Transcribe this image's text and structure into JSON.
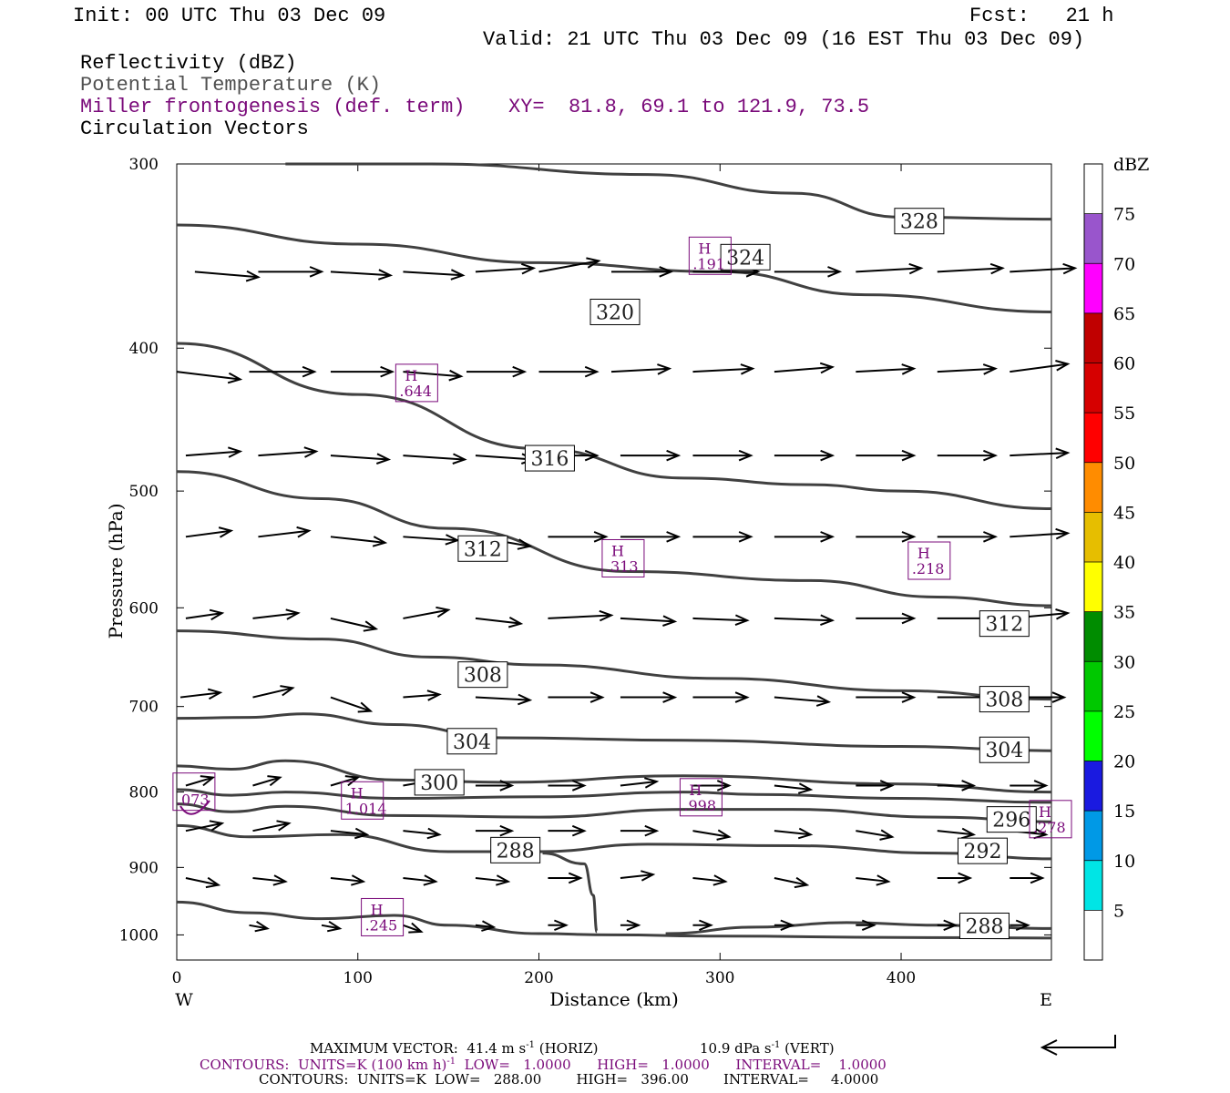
{
  "header": {
    "init": "Init: 00 UTC Thu 03 Dec 09",
    "fcst": "Fcst:   21 h",
    "valid": "Valid: 21 UTC Thu 03 Dec 09 (16 EST Thu 03 Dec 09)",
    "field1": "Reflectivity (dBZ)",
    "field2": "Potential Temperature (K)",
    "field3": "Miller frontogenesis (def. term)",
    "xy": "XY=  81.8, 69.1 to 121.9, 73.5",
    "field4": "Circulation Vectors"
  },
  "colors": {
    "theta": "#404040",
    "fronto": "#7a0a7a",
    "vector": "#000000",
    "field2_text": "#505050",
    "field3_text": "#7a0a7a"
  },
  "footer": {
    "maxvec": "MAXIMUM VECTOR:  41.4 m s",
    "maxvec_sup": "-1",
    "maxvec_h": " (HORIZ)",
    "maxvec_v": "10.9 dPa s",
    "maxvec_v_sup": "-1",
    "maxvec_v2": " (VERT)",
    "cont1_a": "CONTOURS:  UNITS=K (100 km h)",
    "cont1_sup": "-1",
    "cont1_b": "  LOW=   1.0000      HIGH=   1.0000      INTERVAL=    1.0000",
    "cont2": "CONTOURS:  UNITS=K  LOW=   288.00        HIGH=   396.00        INTERVAL=     4.0000"
  },
  "chart_data": {
    "type": "cross-section",
    "xlabel": "Distance (km)",
    "ylabel": "Pressure (hPa)",
    "xlim": [
      0,
      483
    ],
    "ylim": [
      1040,
      300
    ],
    "y_log": true,
    "x_ticks": [
      0,
      100,
      200,
      300,
      400
    ],
    "y_ticks": [
      300,
      400,
      500,
      600,
      700,
      800,
      900,
      1000
    ],
    "x_end_labels": {
      "left": "W",
      "right": "E"
    },
    "colorbar": {
      "title": "dBZ",
      "labels": [
        "5",
        "10",
        "15",
        "20",
        "25",
        "30",
        "35",
        "40",
        "45",
        "50",
        "55",
        "60",
        "65",
        "70",
        "75"
      ],
      "colors": [
        "#ffffff",
        "#00e5e5",
        "#0099e6",
        "#1a1ae0",
        "#00ff00",
        "#00c800",
        "#008c00",
        "#ffff00",
        "#e6be00",
        "#ff8c00",
        "#ff0000",
        "#d60000",
        "#c00000",
        "#ff00ff",
        "#9955cc",
        "#ffffff"
      ]
    },
    "theta_contours": [
      {
        "label": "328",
        "points": [
          [
            60,
            300
          ],
          [
            140,
            300
          ],
          [
            260,
            305
          ],
          [
            340,
            314
          ],
          [
            400,
            326
          ],
          [
            483,
            327
          ]
        ]
      },
      {
        "label": "324",
        "points": [
          [
            0,
            330
          ],
          [
            100,
            340
          ],
          [
            200,
            350
          ],
          [
            300,
            355
          ],
          [
            380,
            368
          ],
          [
            483,
            378
          ]
        ]
      },
      {
        "label": "320",
        "points": [
          [
            0,
            397
          ],
          [
            100,
            430
          ],
          [
            200,
            468
          ],
          [
            280,
            490
          ],
          [
            350,
            495
          ],
          [
            400,
            500
          ],
          [
            483,
            514
          ]
        ]
      },
      {
        "label": "316",
        "points": [
          [
            0,
            485
          ],
          [
            80,
            506
          ],
          [
            150,
            530
          ],
          [
            250,
            567
          ],
          [
            350,
            575
          ],
          [
            420,
            590
          ],
          [
            483,
            598
          ]
        ]
      },
      {
        "label": "312",
        "points": [
          [
            0,
            622
          ],
          [
            80,
            630
          ],
          [
            140,
            648
          ],
          [
            200,
            656
          ],
          [
            300,
            670
          ],
          [
            400,
            683
          ],
          [
            483,
            692
          ]
        ]
      },
      {
        "label": "308",
        "points": [
          [
            0,
            713
          ],
          [
            40,
            712
          ],
          [
            70,
            708
          ],
          [
            120,
            720
          ],
          [
            180,
            735
          ],
          [
            280,
            738
          ],
          [
            400,
            745
          ],
          [
            483,
            750
          ]
        ]
      },
      {
        "label": "304",
        "points": [
          [
            0,
            768
          ],
          [
            30,
            772
          ],
          [
            60,
            762
          ],
          [
            120,
            785
          ],
          [
            180,
            788
          ],
          [
            280,
            780
          ],
          [
            400,
            790
          ],
          [
            483,
            800
          ]
        ]
      },
      {
        "label": "300",
        "points": [
          [
            0,
            797
          ],
          [
            30,
            804
          ],
          [
            60,
            800
          ],
          [
            120,
            808
          ],
          [
            200,
            806
          ],
          [
            280,
            800
          ],
          [
            320,
            803
          ],
          [
            400,
            808
          ],
          [
            483,
            813
          ]
        ]
      },
      {
        "label": "296",
        "points": [
          [
            0,
            815
          ],
          [
            30,
            825
          ],
          [
            60,
            818
          ],
          [
            120,
            830
          ],
          [
            200,
            832
          ],
          [
            280,
            822
          ],
          [
            340,
            822
          ],
          [
            420,
            832
          ],
          [
            483,
            838
          ]
        ]
      },
      {
        "label": "292",
        "points": [
          [
            0,
            843
          ],
          [
            40,
            858
          ],
          [
            90,
            855
          ],
          [
            150,
            878
          ],
          [
            200,
            878
          ],
          [
            260,
            868
          ],
          [
            340,
            870
          ],
          [
            420,
            880
          ],
          [
            483,
            888
          ]
        ]
      },
      {
        "label": "288",
        "points": [
          [
            0,
            950
          ],
          [
            40,
            966
          ],
          [
            80,
            975
          ],
          [
            120,
            970
          ],
          [
            150,
            985
          ],
          [
            200,
            998
          ],
          [
            240,
            1000
          ],
          [
            300,
            1002
          ],
          [
            400,
            1004
          ],
          [
            483,
            1005
          ]
        ]
      },
      {
        "label": "288",
        "points": [
          [
            202,
            880
          ],
          [
            225,
            895
          ],
          [
            230,
            940
          ],
          [
            232,
            995
          ]
        ]
      },
      {
        "label": "288",
        "points": [
          [
            270,
            998
          ],
          [
            320,
            988
          ],
          [
            370,
            981
          ],
          [
            420,
            985
          ],
          [
            483,
            990
          ]
        ]
      }
    ],
    "theta_labels": [
      {
        "text": "328",
        "x": 410,
        "p": 328
      },
      {
        "text": "324",
        "x": 314,
        "p": 347
      },
      {
        "text": "320",
        "x": 242,
        "p": 378
      },
      {
        "text": "316",
        "x": 206,
        "p": 475
      },
      {
        "text": "312",
        "x": 169,
        "p": 547
      },
      {
        "text": "312",
        "x": 457,
        "p": 615
      },
      {
        "text": "308",
        "x": 169,
        "p": 666
      },
      {
        "text": "308",
        "x": 457,
        "p": 692
      },
      {
        "text": "304",
        "x": 163,
        "p": 739
      },
      {
        "text": "304",
        "x": 457,
        "p": 749
      },
      {
        "text": "300",
        "x": 145,
        "p": 788
      },
      {
        "text": "296",
        "x": 461,
        "p": 835
      },
      {
        "text": "292",
        "x": 445,
        "p": 877
      },
      {
        "text": "288",
        "x": 187,
        "p": 876
      },
      {
        "text": "288",
        "x": 446,
        "p": 986
      }
    ],
    "fronto_maxima": [
      {
        "text": "H",
        "value": ".191",
        "x": 294,
        "p": 346
      },
      {
        "text": "H",
        "value": ".644",
        "x": 132,
        "p": 422
      },
      {
        "text": "H",
        "value": ".313",
        "x": 246,
        "p": 555
      },
      {
        "text": "H",
        "value": ".218",
        "x": 415,
        "p": 557
      },
      {
        "text": "H",
        "value": "1.014",
        "x": 102,
        "p": 810
      },
      {
        "text": "H",
        "value": ".998",
        "x": 289,
        "p": 806
      },
      {
        "text": "H",
        "value": ".278",
        "x": 482,
        "p": 834
      },
      {
        "text": "H",
        "value": ".245",
        "x": 113,
        "p": 972
      },
      {
        "text": "",
        "value": ".073",
        "x": 9,
        "p": 799
      }
    ],
    "vector_rows": [
      {
        "p": 355,
        "xs": [
          10,
          45,
          85,
          125,
          165,
          200,
          240,
          285,
          330,
          375,
          420,
          460
        ],
        "dx": [
          35,
          35,
          33,
          33,
          32,
          33,
          33,
          36,
          36,
          36,
          36,
          36
        ],
        "dp": [
          3,
          0,
          2,
          2,
          -2,
          -6,
          0,
          0,
          0,
          -2,
          -2,
          -2
        ]
      },
      {
        "p": 415,
        "xs": [
          0,
          40,
          85,
          125,
          160,
          200,
          240,
          285,
          330,
          375,
          420,
          460
        ],
        "dx": [
          35,
          36,
          34,
          32,
          32,
          32,
          32,
          33,
          32,
          32,
          32,
          32
        ],
        "dp": [
          5,
          0,
          0,
          3,
          0,
          0,
          -2,
          -2,
          -3,
          -2,
          -2,
          -5
        ]
      },
      {
        "p": 473,
        "xs": [
          5,
          45,
          85,
          125,
          165,
          200,
          245,
          285,
          330,
          375,
          420,
          460
        ],
        "dx": [
          30,
          32,
          32,
          34,
          32,
          32,
          32,
          32,
          32,
          32,
          32,
          32
        ],
        "dp": [
          -3,
          -3,
          3,
          3,
          3,
          0,
          0,
          0,
          0,
          0,
          0,
          -2
        ]
      },
      {
        "p": 537,
        "xs": [
          5,
          45,
          85,
          125,
          165,
          205,
          245,
          285,
          330,
          375,
          420,
          460
        ],
        "dx": [
          25,
          28,
          30,
          30,
          30,
          32,
          32,
          32,
          32,
          32,
          32,
          32
        ],
        "dp": [
          -5,
          -5,
          5,
          3,
          8,
          0,
          0,
          0,
          0,
          0,
          0,
          -3
        ]
      },
      {
        "p": 610,
        "xs": [
          5,
          42,
          85,
          125,
          165,
          205,
          245,
          285,
          330,
          375,
          420,
          460
        ],
        "dx": [
          20,
          25,
          25,
          25,
          25,
          35,
          30,
          30,
          32,
          32,
          32,
          32
        ],
        "dp": [
          -5,
          -5,
          10,
          -8,
          5,
          -3,
          3,
          2,
          2,
          0,
          0,
          -5
        ]
      },
      {
        "p": 690,
        "xs": [
          2,
          42,
          85,
          125,
          165,
          205,
          245,
          285,
          330,
          375,
          420,
          460
        ],
        "dx": [
          22,
          22,
          22,
          20,
          30,
          30,
          30,
          30,
          30,
          32,
          30,
          30
        ],
        "dp": [
          -5,
          -10,
          15,
          -3,
          3,
          0,
          0,
          0,
          5,
          0,
          0,
          0
        ]
      },
      {
        "p": 792,
        "xs": [
          5,
          42,
          85,
          125,
          165,
          205,
          245,
          285,
          330,
          375,
          420,
          460
        ],
        "dx": [
          15,
          15,
          15,
          20,
          20,
          20,
          20,
          20,
          20,
          20,
          20,
          20
        ],
        "dp": [
          -10,
          -10,
          -10,
          -8,
          0,
          0,
          -5,
          0,
          5,
          0,
          0,
          0
        ]
      },
      {
        "p": 850,
        "xs": [
          5,
          42,
          85,
          125,
          165,
          205,
          245,
          285,
          330,
          375,
          420,
          460
        ],
        "dx": [
          20,
          20,
          20,
          20,
          20,
          20,
          20,
          20,
          20,
          20,
          20,
          20
        ],
        "dp": [
          -10,
          -10,
          5,
          5,
          0,
          0,
          0,
          8,
          5,
          8,
          5,
          5
        ]
      },
      {
        "p": 915,
        "xs": [
          5,
          42,
          85,
          125,
          165,
          205,
          245,
          285,
          330,
          375,
          420,
          460
        ],
        "dx": [
          18,
          18,
          18,
          18,
          18,
          18,
          18,
          18,
          18,
          18,
          18,
          18
        ],
        "dp": [
          10,
          5,
          5,
          5,
          5,
          0,
          -5,
          5,
          10,
          5,
          0,
          0
        ]
      },
      {
        "p": 985,
        "xs": [
          40,
          80,
          125,
          165,
          205,
          245,
          285,
          330,
          375,
          420,
          460
        ],
        "dx": [
          10,
          10,
          10,
          10,
          10,
          10,
          10,
          10,
          10,
          10,
          10
        ],
        "dp": [
          5,
          5,
          10,
          3,
          0,
          0,
          0,
          0,
          0,
          0,
          0
        ]
      }
    ]
  }
}
